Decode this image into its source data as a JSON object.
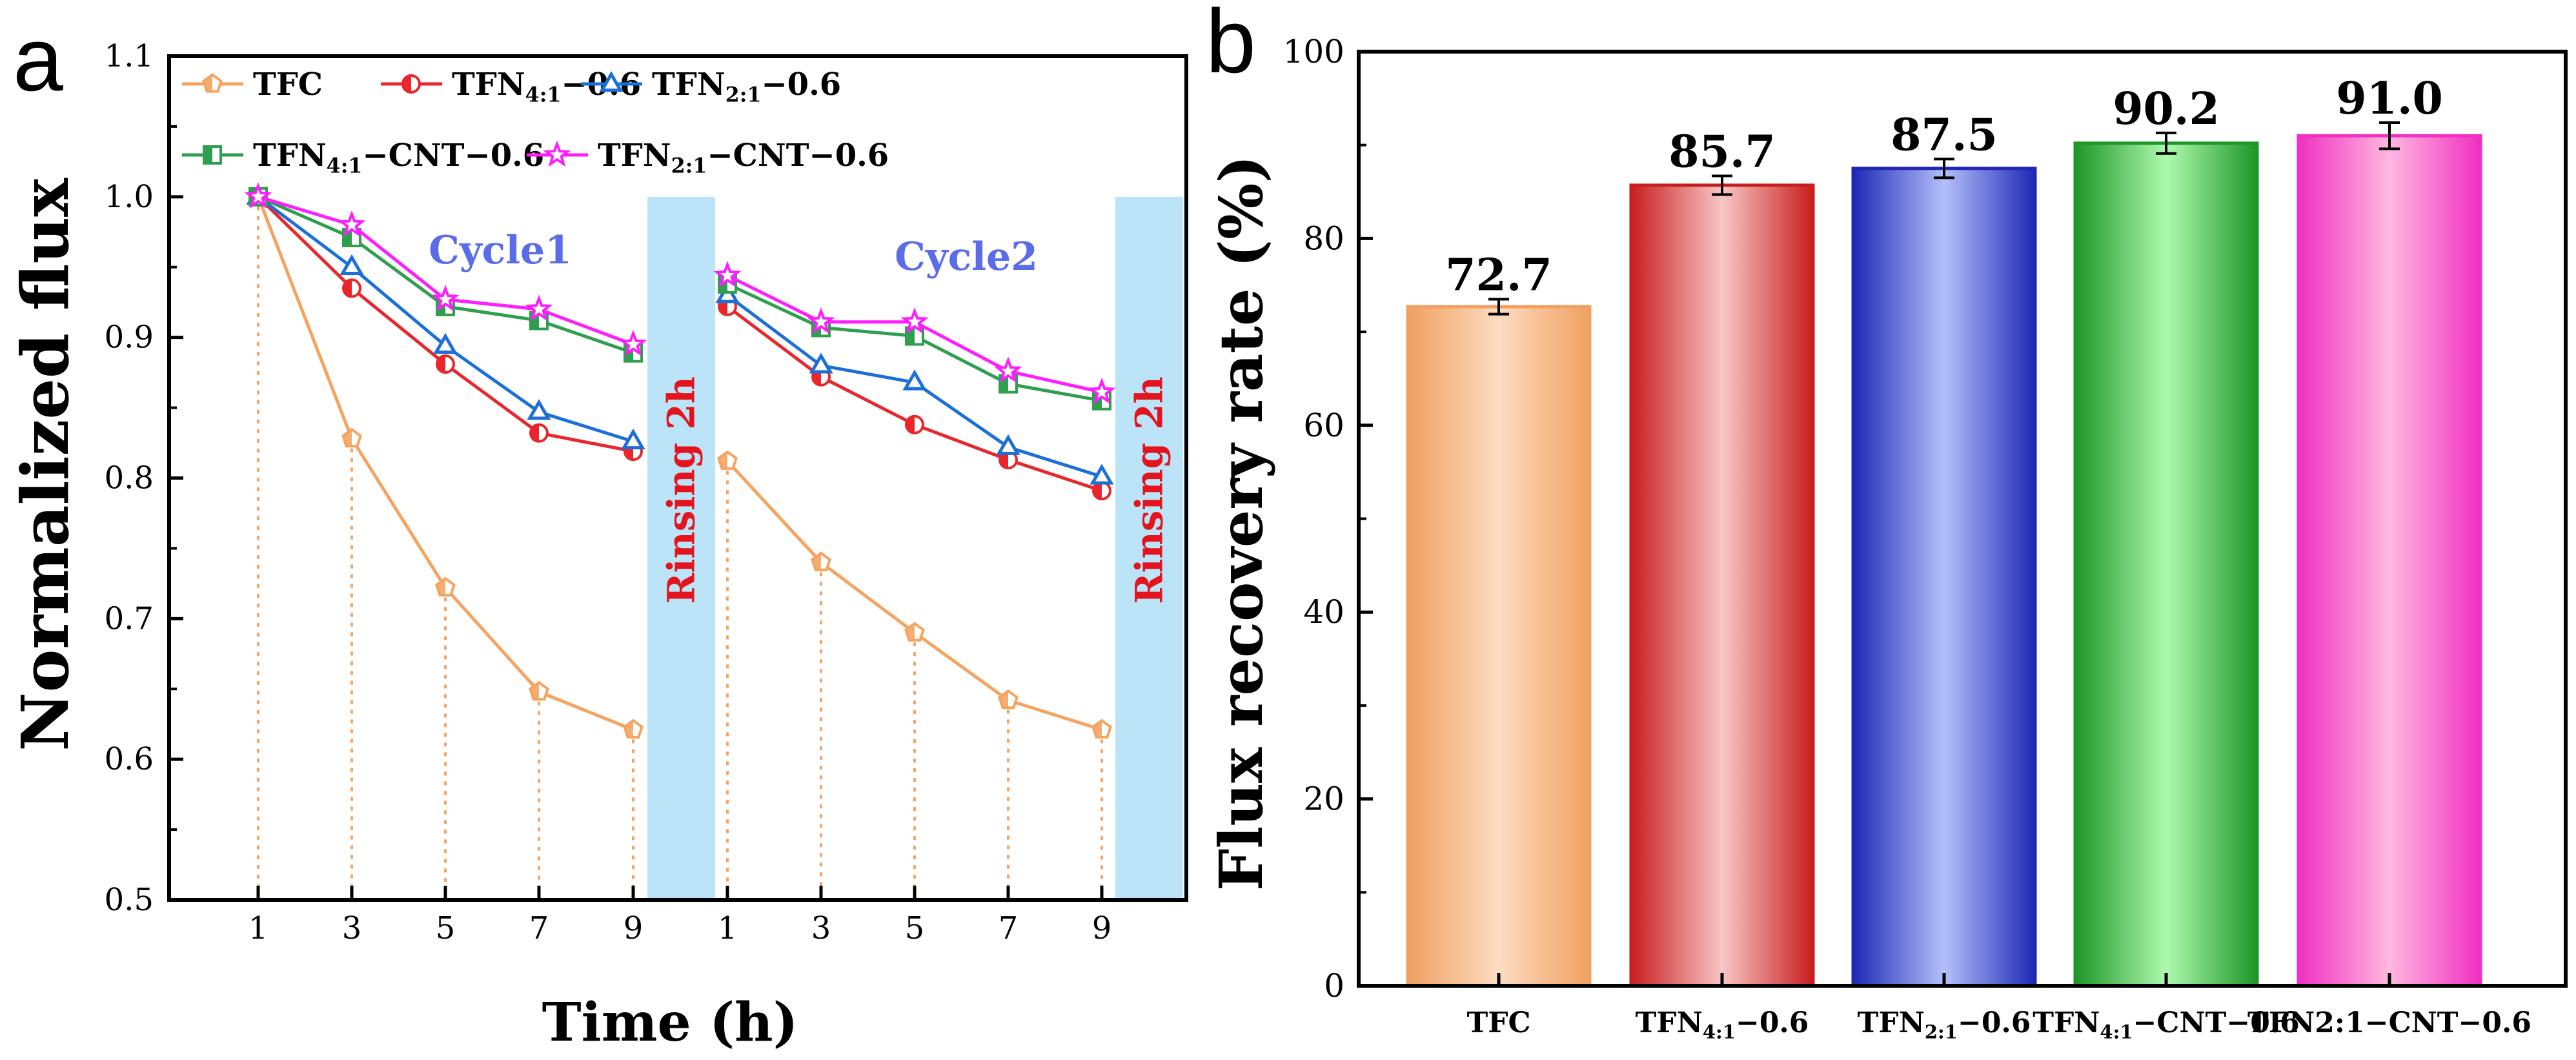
{
  "chart_data": [
    {
      "panel": "a",
      "type": "line",
      "xlabel": "Time (h)",
      "ylabel": "Normalized flux",
      "ylim": [
        0.5,
        1.1
      ],
      "yticks": [
        "0.5",
        "0.6",
        "0.7",
        "0.8",
        "0.9",
        "1.0",
        "1.1"
      ],
      "x_tick_labels": [
        "1",
        "3",
        "5",
        "7",
        "9",
        "1",
        "3",
        "5",
        "7",
        "9"
      ],
      "cycle_labels": [
        "Cycle1",
        "Cycle2"
      ],
      "rinsing_label": "Rinsing 2h",
      "legend": [
        {
          "name": "TFC"
        },
        {
          "name": "TFN",
          "sub": "4:1",
          "suffix": "−0.6"
        },
        {
          "name": "TFN",
          "sub": "2:1",
          "suffix": "−0.6"
        },
        {
          "name": "TFN",
          "sub": "4:1",
          "suffix": "−CNT−0.6"
        },
        {
          "name": "TFN",
          "sub": "2:1",
          "suffix": "−CNT−0.6"
        }
      ],
      "series": [
        {
          "name": "TFC",
          "color": "#F4A460",
          "marker": "pentagon",
          "cycle1": [
            1.0,
            0.828,
            0.722,
            0.648,
            0.621
          ],
          "cycle2": [
            0.812,
            0.74,
            0.69,
            0.642,
            0.621
          ]
        },
        {
          "name": "TFN4:1-0.6",
          "color": "#E8262B",
          "marker": "circle",
          "cycle1": [
            1.0,
            0.935,
            0.881,
            0.832,
            0.819
          ],
          "cycle2": [
            0.922,
            0.872,
            0.838,
            0.813,
            0.791
          ]
        },
        {
          "name": "TFN2:1-0.6",
          "color": "#1C6FD8",
          "marker": "triangle",
          "cycle1": [
            1.0,
            0.95,
            0.894,
            0.847,
            0.826
          ],
          "cycle2": [
            0.93,
            0.88,
            0.868,
            0.822,
            0.801
          ]
        },
        {
          "name": "TFN4:1-CNT-0.6",
          "color": "#2E9E4F",
          "marker": "square",
          "cycle1": [
            1.0,
            0.971,
            0.922,
            0.912,
            0.889
          ],
          "cycle2": [
            0.938,
            0.907,
            0.901,
            0.867,
            0.855
          ]
        },
        {
          "name": "TFN2:1-CNT-0.6",
          "color": "#FF1CFF",
          "marker": "star",
          "cycle1": [
            1.0,
            0.98,
            0.927,
            0.92,
            0.895
          ],
          "cycle2": [
            0.944,
            0.911,
            0.911,
            0.876,
            0.861
          ]
        }
      ]
    },
    {
      "panel": "b",
      "type": "bar",
      "ylabel": "Flux recovery rate (%)",
      "ylim": [
        0,
        100
      ],
      "yticks": [
        "0",
        "20",
        "40",
        "60",
        "80",
        "100"
      ],
      "categories": [
        {
          "name": "TFC"
        },
        {
          "name": "TFN",
          "sub": "4:1",
          "suffix": "−0.6"
        },
        {
          "name": "TFN",
          "sub": "2:1",
          "suffix": "−0.6"
        },
        {
          "name": "TFN",
          "sub": "4:1",
          "suffix": "−CNT−0.6"
        },
        {
          "name": "TFN2:1−CNT−0.6"
        }
      ],
      "values": [
        72.7,
        85.7,
        87.5,
        90.2,
        91.0
      ],
      "value_labels": [
        "72.7",
        "85.7",
        "87.5",
        "90.2",
        "91.0"
      ],
      "errors": [
        0.8,
        1.0,
        1.0,
        1.1,
        1.4
      ],
      "colors": [
        {
          "edge": "#F0A060",
          "light": "#FCDCC0"
        },
        {
          "edge": "#C81E1E",
          "light": "#F8C6C6"
        },
        {
          "edge": "#1E28B4",
          "light": "#B4C0FA"
        },
        {
          "edge": "#1E9628",
          "light": "#AEFAAE"
        },
        {
          "edge": "#F030C0",
          "light": "#FFB8E0"
        }
      ]
    }
  ],
  "panel_labels": [
    "a",
    "b"
  ]
}
